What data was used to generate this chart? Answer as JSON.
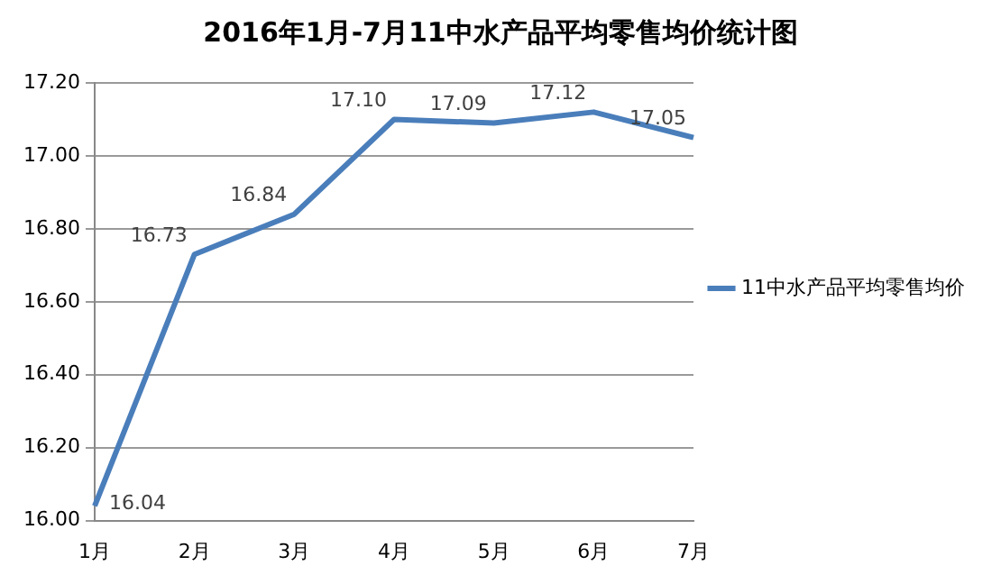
{
  "chart_data": {
    "type": "line",
    "title": "2016年1月-7月11中水产品平均零售均价统计图",
    "categories": [
      "1月",
      "2月",
      "3月",
      "4月",
      "5月",
      "6月",
      "7月"
    ],
    "series": [
      {
        "name": "11中水产品平均零售均价",
        "color": "#4a7ebb",
        "values": [
          16.04,
          16.73,
          16.84,
          17.1,
          17.09,
          17.12,
          17.05
        ],
        "value_labels": [
          "16.04",
          "16.73",
          "16.84",
          "17.10",
          "17.09",
          "17.12",
          "17.05"
        ]
      }
    ],
    "ylim": [
      16,
      17.2
    ],
    "yticks": [
      {
        "value": 16,
        "label": "16.00"
      },
      {
        "value": 16.2,
        "label": "16.20"
      },
      {
        "value": 16.4,
        "label": "16.40"
      },
      {
        "value": 16.6,
        "label": "16.60"
      },
      {
        "value": 16.8,
        "label": "16.80"
      },
      {
        "value": 17,
        "label": "17.00"
      },
      {
        "value": 17.2,
        "label": "17.20"
      }
    ],
    "grid": "y",
    "legend": "right",
    "marker": "none",
    "line_style": "solid"
  }
}
